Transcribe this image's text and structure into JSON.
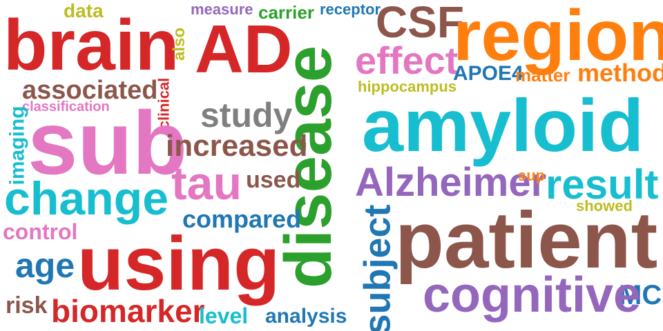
{
  "colors": {
    "red": "#d62728",
    "pink": "#e377c2",
    "cyan": "#17becf",
    "brown": "#8c564b",
    "olive": "#bcbd22",
    "green": "#2ca02c",
    "purple": "#9467bd",
    "blue": "#1f77b4",
    "orange": "#ff7f0e",
    "gray": "#7f7f7f"
  },
  "words": {
    "data": "data",
    "measure": "measure",
    "carrier": "carrier",
    "receptor": "receptor",
    "csf": "CSF",
    "region": "region",
    "brain": "brain",
    "ad": "AD",
    "also": "also",
    "disease": "disease",
    "effect": "effect",
    "apoe4": "APOE4",
    "matter": "matter",
    "method": "method",
    "mci": "MCI",
    "associated": "associated",
    "hippocampus": "hippocampus",
    "classification": "classification",
    "clinical": "clinical",
    "study": "study",
    "amyloid": "amyloid",
    "imaging": "imaging",
    "sub": "sub",
    "increased": "increased",
    "tau": "tau",
    "used": "used",
    "alzheimer": "Alzheimer",
    "sup": "sup",
    "result": "result",
    "showed": "showed",
    "change": "change",
    "compared": "compared",
    "subject": "subject",
    "control": "control",
    "patient": "patient",
    "using": "using",
    "age": "age",
    "cognitive": "cognitive",
    "risk": "risk",
    "biomarker": "biomarker",
    "level": "level",
    "analysis": "analysis"
  }
}
